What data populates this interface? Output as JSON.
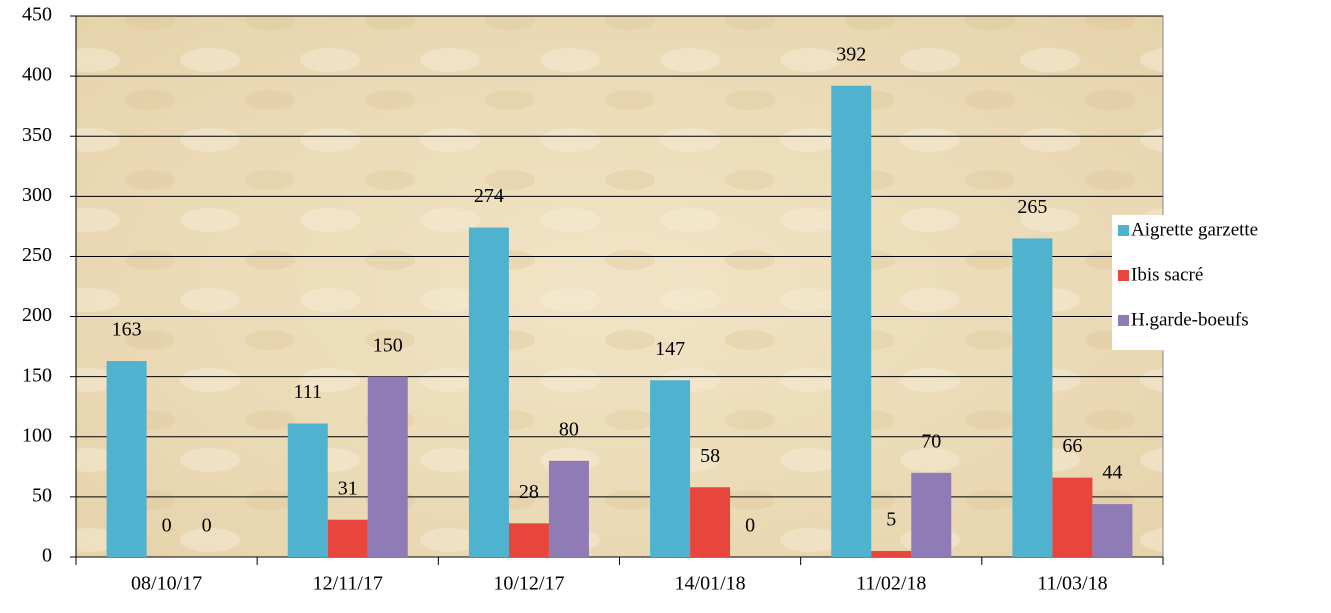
{
  "chart_data": {
    "type": "bar",
    "categories": [
      "08/10/17",
      "12/11/17",
      "10/12/17",
      "14/01/18",
      "11/02/18",
      "11/03/18"
    ],
    "series": [
      {
        "name": "Aigrette garzette",
        "color": "#4fb3cf",
        "values": [
          163,
          111,
          274,
          147,
          392,
          265
        ]
      },
      {
        "name": "Ibis sacré",
        "color": "#e8453c",
        "values": [
          0,
          31,
          28,
          58,
          5,
          66
        ]
      },
      {
        "name": "H.garde-boeufs",
        "color": "#8f7bb6",
        "values": [
          0,
          150,
          80,
          0,
          70,
          44
        ]
      }
    ],
    "ylim": [
      0,
      450
    ],
    "yticks": [
      0,
      50,
      100,
      150,
      200,
      250,
      300,
      350,
      400,
      450
    ],
    "grid": true,
    "legend": "right"
  }
}
